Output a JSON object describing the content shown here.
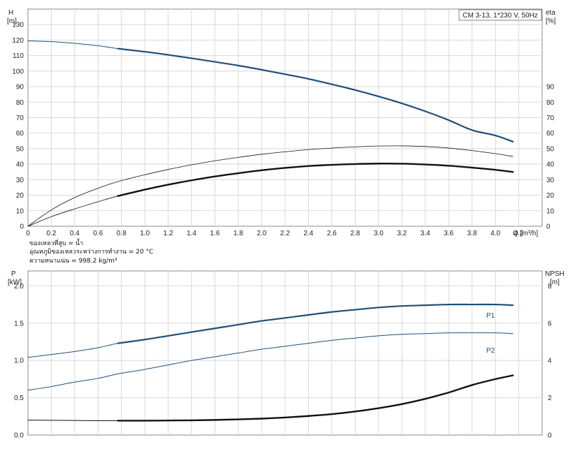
{
  "chart_data": [
    {
      "type": "line",
      "legend_text": "CM 3-13, 1*230 V, 50Hz",
      "left_axis": {
        "label_line1": "H",
        "label_line2": "[m]",
        "ylim": [
          0,
          140
        ],
        "ticks": [
          0,
          10,
          20,
          30,
          40,
          50,
          60,
          70,
          80,
          90,
          100,
          110,
          120,
          130
        ]
      },
      "right_axis": {
        "label_line1": "eta",
        "label_line2": "[%]",
        "ylim": [
          0,
          140
        ],
        "ticks": [
          0,
          10,
          20,
          30,
          40,
          50,
          60,
          70,
          80,
          90
        ]
      },
      "x_axis": {
        "label": "Q [m³/h]",
        "xlim": [
          0,
          4.4
        ],
        "ticks": [
          "0",
          "0.2",
          "0.4",
          "0.6",
          "0.8",
          "1.0",
          "1.2",
          "1.4",
          "1.6",
          "1.8",
          "2.0",
          "2.2",
          "2.4",
          "2.6",
          "2.8",
          "3.0",
          "3.2",
          "3.4",
          "3.6",
          "3.8",
          "4.0",
          "4.2"
        ]
      },
      "series": [
        {
          "key": "H",
          "axis": "left",
          "color": "#1f4e79",
          "width_thin": 1.0,
          "width_thick": 2.2,
          "op_start": 0.77,
          "x": [
            0,
            0.2,
            0.4,
            0.6,
            0.77,
            1.0,
            1.2,
            1.4,
            1.6,
            1.8,
            2.0,
            2.2,
            2.4,
            2.6,
            2.8,
            3.0,
            3.2,
            3.4,
            3.6,
            3.8,
            4.0,
            4.15
          ],
          "y": [
            119.5,
            119.0,
            117.9,
            116.4,
            114.5,
            112.5,
            110.5,
            108.3,
            106.0,
            103.6,
            100.9,
            98.0,
            95.0,
            91.5,
            87.8,
            83.7,
            79.2,
            74.1,
            68.4,
            62.0,
            58.5,
            54.5
          ]
        },
        {
          "key": "eta_total",
          "axis": "right",
          "color": "#111111",
          "width_thin": 0.8,
          "width_thick": 1.2,
          "op_start": 99,
          "x": [
            0,
            0.2,
            0.4,
            0.6,
            0.77,
            1.0,
            1.2,
            1.4,
            1.6,
            1.8,
            2.0,
            2.2,
            2.4,
            2.6,
            2.8,
            3.0,
            3.2,
            3.4,
            3.6,
            3.8,
            4.0,
            4.15
          ],
          "y": [
            0,
            10.5,
            18.5,
            24.5,
            28.8,
            33.2,
            36.6,
            39.6,
            42.2,
            44.4,
            46.4,
            48.0,
            49.4,
            50.4,
            51.2,
            51.7,
            51.8,
            51.4,
            50.4,
            48.8,
            46.8,
            45.0
          ]
        },
        {
          "key": "eta_pump",
          "axis": "right",
          "color": "#111111",
          "width_thin": 0.8,
          "width_thick": 2.4,
          "op_start": 0.77,
          "x": [
            0,
            0.2,
            0.4,
            0.6,
            0.77,
            1.0,
            1.2,
            1.4,
            1.6,
            1.8,
            2.0,
            2.2,
            2.4,
            2.6,
            2.8,
            3.0,
            3.2,
            3.4,
            3.6,
            3.8,
            4.0,
            4.15
          ],
          "y": [
            0,
            6.2,
            11.2,
            15.8,
            19.5,
            23.6,
            26.8,
            29.6,
            32.1,
            34.2,
            36.1,
            37.6,
            38.8,
            39.6,
            40.1,
            40.4,
            40.3,
            39.8,
            39.0,
            37.8,
            36.4,
            35.0
          ]
        }
      ]
    },
    {
      "type": "line",
      "left_axis": {
        "label_line1": "P",
        "label_line2": "[kW]",
        "ylim": [
          0,
          2.2
        ],
        "ticks": [
          "0.0",
          "0.5",
          "1.0",
          "1.5",
          "2.0"
        ]
      },
      "right_axis": {
        "label_line1": "NPSH",
        "label_line2": "[m]",
        "ylim": [
          0,
          8.8
        ],
        "ticks": [
          "0",
          "2",
          "4",
          "6",
          "8"
        ]
      },
      "x_axis": {
        "xlim": [
          0,
          4.4
        ]
      },
      "series": [
        {
          "key": "P1",
          "name": "P1",
          "axis": "left",
          "color": "#1f4e79",
          "width_thin": 1.0,
          "width_thick": 2.2,
          "op_start": 0.77,
          "x": [
            0,
            0.2,
            0.4,
            0.6,
            0.77,
            1.0,
            1.2,
            1.4,
            1.6,
            1.8,
            2.0,
            2.2,
            2.4,
            2.6,
            2.8,
            3.0,
            3.2,
            3.4,
            3.6,
            3.8,
            4.0,
            4.15
          ],
          "y": [
            1.04,
            1.08,
            1.12,
            1.17,
            1.23,
            1.28,
            1.33,
            1.38,
            1.43,
            1.48,
            1.53,
            1.57,
            1.61,
            1.65,
            1.68,
            1.71,
            1.73,
            1.74,
            1.75,
            1.75,
            1.75,
            1.74
          ]
        },
        {
          "key": "P2",
          "name": "P2",
          "axis": "left",
          "color": "#1f4e79",
          "width_thin": 1.0,
          "width_thick": 1.0,
          "op_start": 99,
          "x": [
            0,
            0.2,
            0.4,
            0.6,
            0.77,
            1.0,
            1.2,
            1.4,
            1.6,
            1.8,
            2.0,
            2.2,
            2.4,
            2.6,
            2.8,
            3.0,
            3.2,
            3.4,
            3.6,
            3.8,
            4.0,
            4.15
          ],
          "y": [
            0.6,
            0.65,
            0.71,
            0.76,
            0.82,
            0.88,
            0.94,
            1.0,
            1.05,
            1.1,
            1.15,
            1.19,
            1.23,
            1.27,
            1.3,
            1.33,
            1.35,
            1.36,
            1.37,
            1.37,
            1.37,
            1.36
          ]
        },
        {
          "key": "NPSH",
          "axis": "right",
          "color": "#111111",
          "width_thin": 1.0,
          "width_thick": 2.4,
          "op_start": 0.77,
          "x": [
            0,
            0.2,
            0.4,
            0.6,
            0.77,
            1.0,
            1.2,
            1.4,
            1.6,
            1.8,
            2.0,
            2.2,
            2.4,
            2.6,
            2.8,
            3.0,
            3.2,
            3.4,
            3.6,
            3.8,
            4.0,
            4.15
          ],
          "y": [
            0.8,
            0.79,
            0.78,
            0.77,
            0.77,
            0.77,
            0.78,
            0.79,
            0.81,
            0.84,
            0.88,
            0.94,
            1.02,
            1.12,
            1.26,
            1.44,
            1.66,
            1.94,
            2.28,
            2.68,
            3.0,
            3.2
          ]
        }
      ]
    }
  ],
  "info": {
    "line1": "ของเหลวที่สูบ = น้ำ",
    "line2": "อุณหภูมิของเหลวระหว่างการทำงาน = 20 °C",
    "line3": "ความหนาแน่น = 998.2 kg/m³"
  }
}
